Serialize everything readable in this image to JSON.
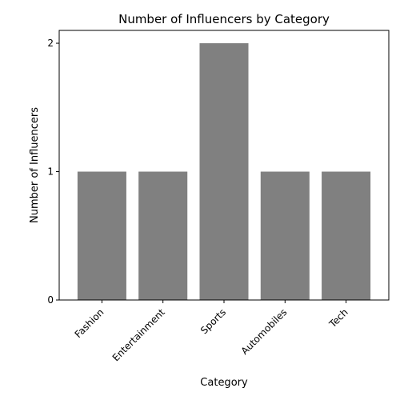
{
  "chart_data": {
    "type": "bar",
    "title": "Number of Influencers by Category",
    "xlabel": "Category",
    "ylabel": "Number of Influencers",
    "categories": [
      "Fashion",
      "Entertainment",
      "Sports",
      "Automobiles",
      "Tech"
    ],
    "values": [
      1,
      1,
      2,
      1,
      1
    ],
    "ylim": [
      0,
      2.1
    ],
    "yticks": [
      0,
      1,
      2
    ],
    "bar_color": "#808080",
    "grid": false,
    "legend": "none"
  }
}
